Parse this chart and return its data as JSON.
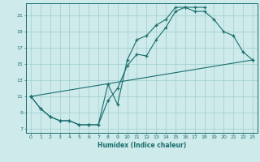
{
  "xlabel": "Humidex (Indice chaleur)",
  "bg_color": "#ceeaea",
  "line_color": "#1a6e6e",
  "grid_color": "#9ecece",
  "xlim": [
    -0.5,
    23.5
  ],
  "ylim": [
    6.5,
    22.5
  ],
  "yticks": [
    7,
    9,
    11,
    13,
    15,
    17,
    19,
    21
  ],
  "xticks": [
    0,
    1,
    2,
    3,
    4,
    5,
    6,
    7,
    8,
    9,
    10,
    11,
    12,
    13,
    14,
    15,
    16,
    17,
    18,
    19,
    20,
    21,
    22,
    23
  ],
  "line1_x": [
    0,
    1,
    2,
    3,
    4,
    5,
    6,
    7,
    8,
    9,
    10,
    11,
    12,
    13,
    14,
    15,
    16,
    17,
    18,
    19,
    20,
    21,
    22,
    23
  ],
  "line1_y": [
    11,
    9.5,
    8.5,
    8,
    8,
    7.5,
    7.5,
    7.5,
    10.5,
    12,
    14.8,
    16.2,
    16,
    18,
    19.5,
    21.5,
    22,
    21.5,
    21.5,
    20.5,
    19,
    18.5,
    16.5,
    15.5
  ],
  "line2_x": [
    0,
    1,
    2,
    3,
    4,
    5,
    6,
    7,
    8,
    9,
    10,
    11,
    12,
    13,
    14,
    15,
    16,
    17,
    18
  ],
  "line2_y": [
    11,
    9.5,
    8.5,
    8,
    8,
    7.5,
    7.5,
    7.5,
    12.5,
    10,
    15.5,
    18,
    18.5,
    19.8,
    20.5,
    22,
    22,
    22,
    22
  ],
  "line3_x": [
    0,
    23
  ],
  "line3_y": [
    11,
    15.5
  ]
}
